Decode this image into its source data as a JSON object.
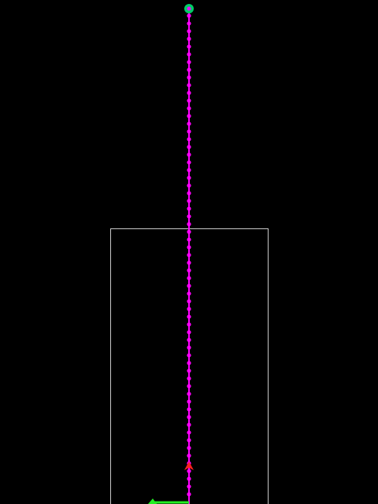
{
  "colors": {
    "background": "#000000",
    "path_line": "#ff00ff",
    "path_dot": "#ff00ff",
    "goal_outer": "#00cc66",
    "goal_inner": "#ff00ff",
    "boundary": "#c8c8c8",
    "agent_arrow": "#ff2020",
    "ground_marker": "#22ee22"
  },
  "icons": {
    "goal": "goal-marker-icon",
    "agent": "agent-heading-arrow-icon",
    "ground": "ground-direction-marker-icon"
  }
}
